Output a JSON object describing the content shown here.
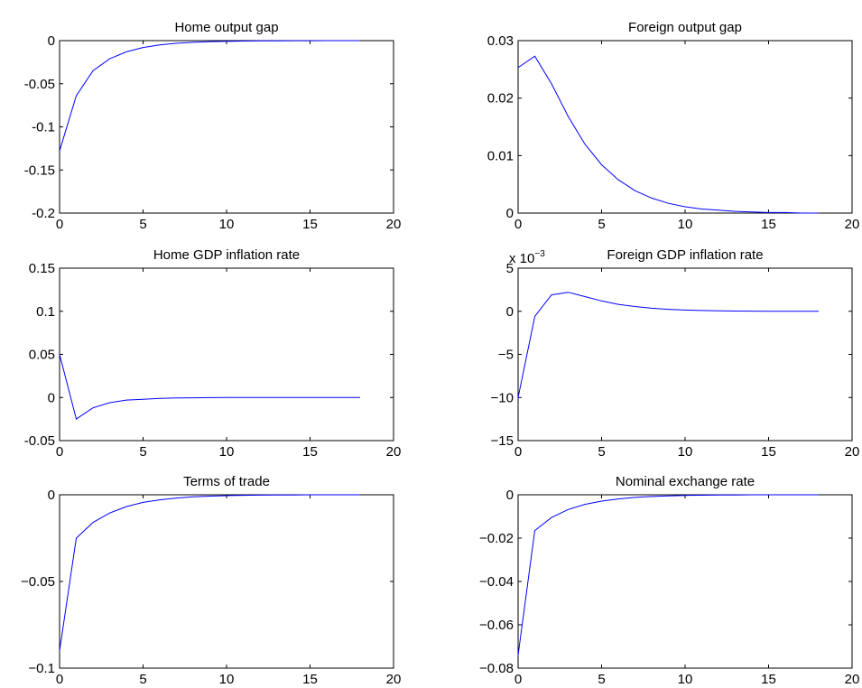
{
  "chart_data": [
    {
      "type": "line",
      "title": "Home output gap",
      "xlim": [
        0,
        20
      ],
      "ylim": [
        -0.2,
        0
      ],
      "xticks": [
        "0",
        "5",
        "10",
        "15",
        "20"
      ],
      "yticks": [
        "0",
        "-0.05",
        "-0.1",
        "-0.15",
        "-0.2"
      ],
      "ytick_values": [
        0,
        -0.05,
        -0.1,
        -0.15,
        -0.2
      ],
      "grid": false,
      "color": "#0000ff",
      "x": [
        0,
        1,
        2,
        3,
        4,
        5,
        6,
        7,
        8,
        9,
        10,
        11,
        12,
        13,
        14,
        15,
        16,
        17,
        18
      ],
      "y": [
        -0.128,
        -0.064,
        -0.035,
        -0.021,
        -0.013,
        -0.008,
        -0.005,
        -0.003,
        -0.002,
        -0.0012,
        -0.0008,
        -0.0005,
        -0.0003,
        -0.0002,
        -0.0001,
        -0.0001,
        0,
        0,
        0
      ]
    },
    {
      "type": "line",
      "title": "Foreign output gap",
      "xlim": [
        0,
        20
      ],
      "ylim": [
        0,
        0.03
      ],
      "xticks": [
        "0",
        "5",
        "10",
        "15",
        "20"
      ],
      "yticks": [
        "0.03",
        "0.02",
        "0.01",
        "0"
      ],
      "ytick_values": [
        0.03,
        0.02,
        0.01,
        0
      ],
      "grid": false,
      "color": "#0000ff",
      "x": [
        0,
        1,
        2,
        3,
        4,
        5,
        6,
        7,
        8,
        9,
        10,
        11,
        12,
        13,
        14,
        15,
        16,
        17,
        18
      ],
      "y": [
        0.0253,
        0.0273,
        0.0225,
        0.0168,
        0.012,
        0.0084,
        0.0058,
        0.0039,
        0.0026,
        0.0017,
        0.0011,
        0.0007,
        0.0005,
        0.0003,
        0.0002,
        0.0001,
        0.0001,
        0,
        0
      ]
    },
    {
      "type": "line",
      "title": "Home GDP inflation rate",
      "xlim": [
        0,
        20
      ],
      "ylim": [
        -0.05,
        0.15
      ],
      "xticks": [
        "0",
        "5",
        "10",
        "15",
        "20"
      ],
      "yticks": [
        "0.15",
        "0.1",
        "0.05",
        "0",
        "-0.05"
      ],
      "ytick_values": [
        0.15,
        0.1,
        0.05,
        0,
        -0.05
      ],
      "grid": false,
      "color": "#0000ff",
      "x": [
        0,
        1,
        2,
        3,
        4,
        5,
        6,
        7,
        8,
        9,
        10,
        11,
        12,
        13,
        14,
        15,
        16,
        17,
        18
      ],
      "y": [
        0.05,
        -0.025,
        -0.012,
        -0.006,
        -0.003,
        -0.002,
        -0.001,
        -0.0006,
        -0.0004,
        -0.0002,
        -0.0001,
        -0.0001,
        0,
        0,
        0,
        0,
        0,
        0,
        0
      ]
    },
    {
      "type": "line",
      "title": "Foreign GDP inflation rate",
      "xlim": [
        0,
        20
      ],
      "ylim": [
        -15,
        5
      ],
      "scale_label": "x 10",
      "scale_exponent": "−3",
      "xticks": [
        "0",
        "5",
        "10",
        "15",
        "20"
      ],
      "yticks": [
        "5",
        "0",
        "−5",
        "−10",
        "−15"
      ],
      "ytick_values": [
        5,
        0,
        -5,
        -10,
        -15
      ],
      "grid": false,
      "color": "#0000ff",
      "x": [
        0,
        1,
        2,
        3,
        4,
        5,
        6,
        7,
        8,
        9,
        10,
        11,
        12,
        13,
        14,
        15,
        16,
        17,
        18
      ],
      "y": [
        -10,
        -0.6,
        1.9,
        2.2,
        1.7,
        1.2,
        0.8,
        0.55,
        0.35,
        0.22,
        0.14,
        0.09,
        0.05,
        0.03,
        0.02,
        0.01,
        0.01,
        0,
        0
      ]
    },
    {
      "type": "line",
      "title": "Terms of trade",
      "xlim": [
        0,
        20
      ],
      "ylim": [
        -0.1,
        0
      ],
      "xticks": [
        "0",
        "5",
        "10",
        "15",
        "20"
      ],
      "yticks": [
        "0",
        "−0.05",
        "−0.1"
      ],
      "ytick_values": [
        0,
        -0.05,
        -0.1
      ],
      "grid": false,
      "color": "#0000ff",
      "x": [
        0,
        1,
        2,
        3,
        4,
        5,
        6,
        7,
        8,
        9,
        10,
        11,
        12,
        13,
        14,
        15,
        16,
        17,
        18
      ],
      "y": [
        -0.09,
        -0.025,
        -0.016,
        -0.0105,
        -0.0068,
        -0.0044,
        -0.0029,
        -0.0019,
        -0.0012,
        -0.0008,
        -0.0005,
        -0.0003,
        -0.0002,
        -0.0001,
        -0.0001,
        0,
        0,
        0,
        0
      ]
    },
    {
      "type": "line",
      "title": "Nominal exchange rate",
      "xlim": [
        0,
        20
      ],
      "ylim": [
        -0.08,
        0
      ],
      "xticks": [
        "0",
        "5",
        "10",
        "15",
        "20"
      ],
      "yticks": [
        "0",
        "−0.02",
        "−0.04",
        "−0.06",
        "−0.08"
      ],
      "ytick_values": [
        0,
        -0.02,
        -0.04,
        -0.06,
        -0.08
      ],
      "grid": false,
      "color": "#0000ff",
      "x": [
        0,
        1,
        2,
        3,
        4,
        5,
        6,
        7,
        8,
        9,
        10,
        11,
        12,
        13,
        14,
        15,
        16,
        17,
        18
      ],
      "y": [
        -0.074,
        -0.0165,
        -0.0105,
        -0.0068,
        -0.0044,
        -0.0029,
        -0.0019,
        -0.0012,
        -0.0008,
        -0.0005,
        -0.0003,
        -0.0002,
        -0.0001,
        -0.0001,
        0,
        0,
        0,
        0,
        0
      ]
    }
  ]
}
